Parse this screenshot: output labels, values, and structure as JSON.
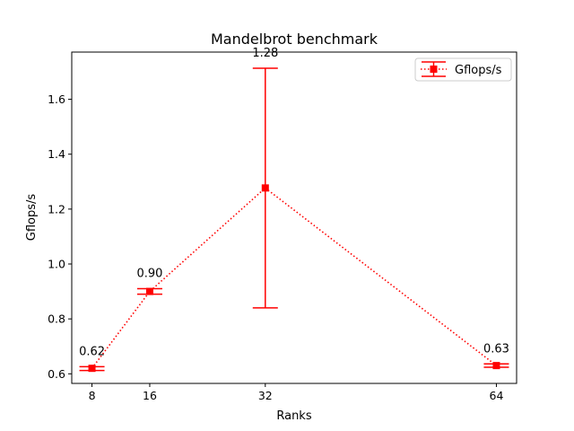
{
  "chart_data": {
    "type": "line",
    "title": "Mandelbrot benchmark",
    "xlabel": "Ranks",
    "ylabel": "Gflops/s",
    "x": [
      8,
      16,
      32,
      64
    ],
    "xticks": [
      "8",
      "16",
      "32",
      "64"
    ],
    "xlim": [
      5.2,
      66.8
    ],
    "ylim": [
      0.565,
      1.772
    ],
    "yticks": [
      "0.6",
      "0.8",
      "1.0",
      "1.2",
      "1.4",
      "1.6"
    ],
    "series": [
      {
        "name": "Gflops/s",
        "values": [
          0.62,
          0.9,
          1.277,
          0.63
        ],
        "error_low": [
          0.612,
          0.89,
          0.84,
          0.624
        ],
        "error_high": [
          0.626,
          0.91,
          1.713,
          0.636
        ],
        "data_labels": [
          "0.62",
          "0.90",
          "1.28",
          "0.63"
        ],
        "color": "#ff0000",
        "line_style": "dotted",
        "marker": "square"
      }
    ],
    "legend": "top-right",
    "grid": false
  }
}
